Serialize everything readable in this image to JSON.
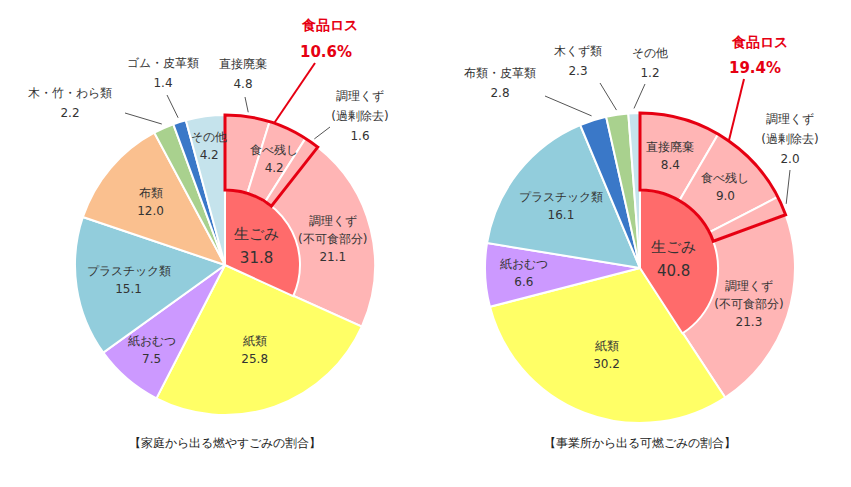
{
  "chart_data": [
    {
      "type": "pie",
      "title": "【家庭から出る燃やすごみの割合】",
      "categories": [
        "直接廃棄",
        "食べ残し",
        "調理くず(過剰除去)",
        "調理くず(不可食部分)",
        "紙類",
        "紙おむつ",
        "プラスチック類",
        "布類",
        "木・竹・わら類",
        "ゴム・皮革類",
        "その他"
      ],
      "values": [
        4.8,
        4.2,
        1.6,
        21.1,
        25.8,
        7.5,
        15.1,
        12.0,
        2.2,
        1.4,
        4.2
      ],
      "value_labels": [
        "4.8",
        "4.2",
        "1.6",
        "21.1",
        "25.8",
        "7.5",
        "15.1",
        "12.0",
        "2.2",
        "1.4",
        "4.2"
      ],
      "colors": [
        "#ffb5b5",
        "#ffb5b5",
        "#ffb5b5",
        "#ffb5b5",
        "#ffff66",
        "#cc99ff",
        "#92cddc",
        "#fac08f",
        "#a9d18e",
        "#3a78c8",
        "#c5e3ec"
      ],
      "data_labels": true,
      "subtotal": {
        "name": "生ごみ",
        "value": 31.8,
        "color": "#ff6b6b"
      },
      "highlight": {
        "text": "食品ロス",
        "value": 10.6,
        "value_label": "10.6%",
        "color": "#e60012"
      }
    },
    {
      "type": "pie",
      "title": "【事業所から出る可燃ごみの割合】",
      "categories": [
        "直接廃棄",
        "食べ残し",
        "調理くず(過剰除去)",
        "調理くず(不可食部分)",
        "紙類",
        "紙おむつ",
        "プラスチック類",
        "布類・皮革類",
        "木くず類",
        "その他"
      ],
      "values": [
        8.4,
        9.0,
        2.0,
        21.3,
        30.2,
        6.6,
        16.1,
        2.8,
        2.3,
        1.2
      ],
      "value_labels": [
        "8.4",
        "9.0",
        "2.0",
        "21.3",
        "30.2",
        "6.6",
        "16.1",
        "2.8",
        "2.3",
        "1.2"
      ],
      "colors": [
        "#ffb5b5",
        "#ffb5b5",
        "#ffb5b5",
        "#ffb5b5",
        "#ffff66",
        "#cc99ff",
        "#92cddc",
        "#3a78c8",
        "#a9d18e",
        "#c5e3ec"
      ],
      "data_labels": true,
      "subtotal": {
        "name": "生ごみ",
        "value": 40.8,
        "color": "#ff6b6b"
      },
      "highlight": {
        "text": "食品ロス",
        "value": 19.4,
        "value_label": "19.4%",
        "color": "#e60012"
      }
    }
  ]
}
